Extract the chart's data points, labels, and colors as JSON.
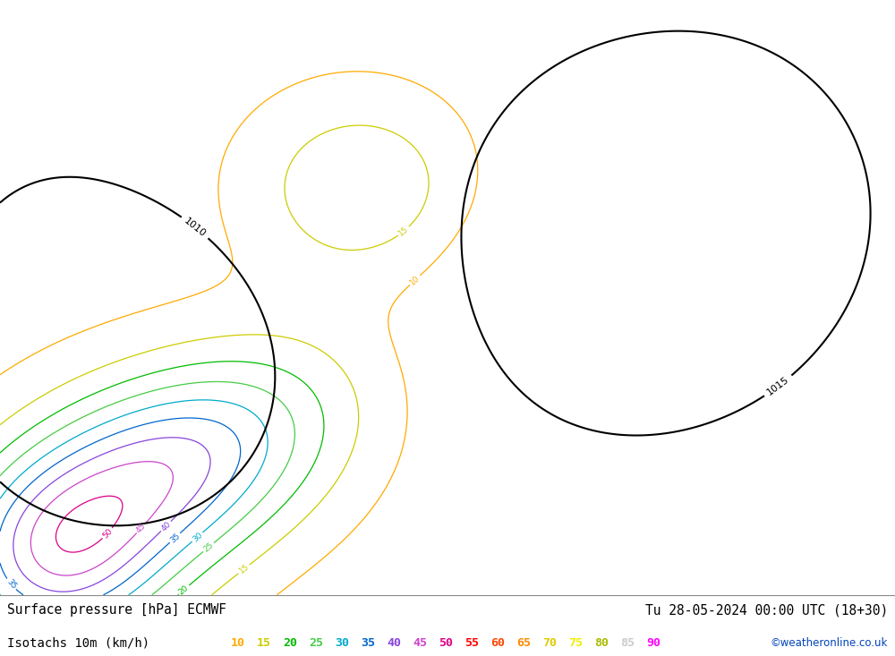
{
  "title_left": "Surface pressure [hPa] ECMWF",
  "title_right": "Tu 28-05-2024 00:00 UTC (18+30)",
  "legend_label": "Isotachs 10m (km/h)",
  "watermark": "©weatheronline.co.uk",
  "legend_values": [
    10,
    15,
    20,
    25,
    30,
    35,
    40,
    45,
    50,
    55,
    60,
    65,
    70,
    75,
    80,
    85,
    90
  ],
  "legend_colors": [
    "#ffaa00",
    "#cccc00",
    "#00bb00",
    "#44cc44",
    "#00aacc",
    "#0066cc",
    "#8844dd",
    "#cc44cc",
    "#dd0088",
    "#ff0000",
    "#ff4400",
    "#ff8800",
    "#ddcc00",
    "#eeee00",
    "#aabb00",
    "#cccccc",
    "#ff00ff"
  ],
  "sea_color": "#d8d8d8",
  "land_color": "#c8eea0",
  "footer_bg": "#ffffff",
  "isobar_color": "#000000",
  "isobar_linewidth": 1.5,
  "coastline_color": "#333333",
  "coastline_linewidth": 0.7
}
